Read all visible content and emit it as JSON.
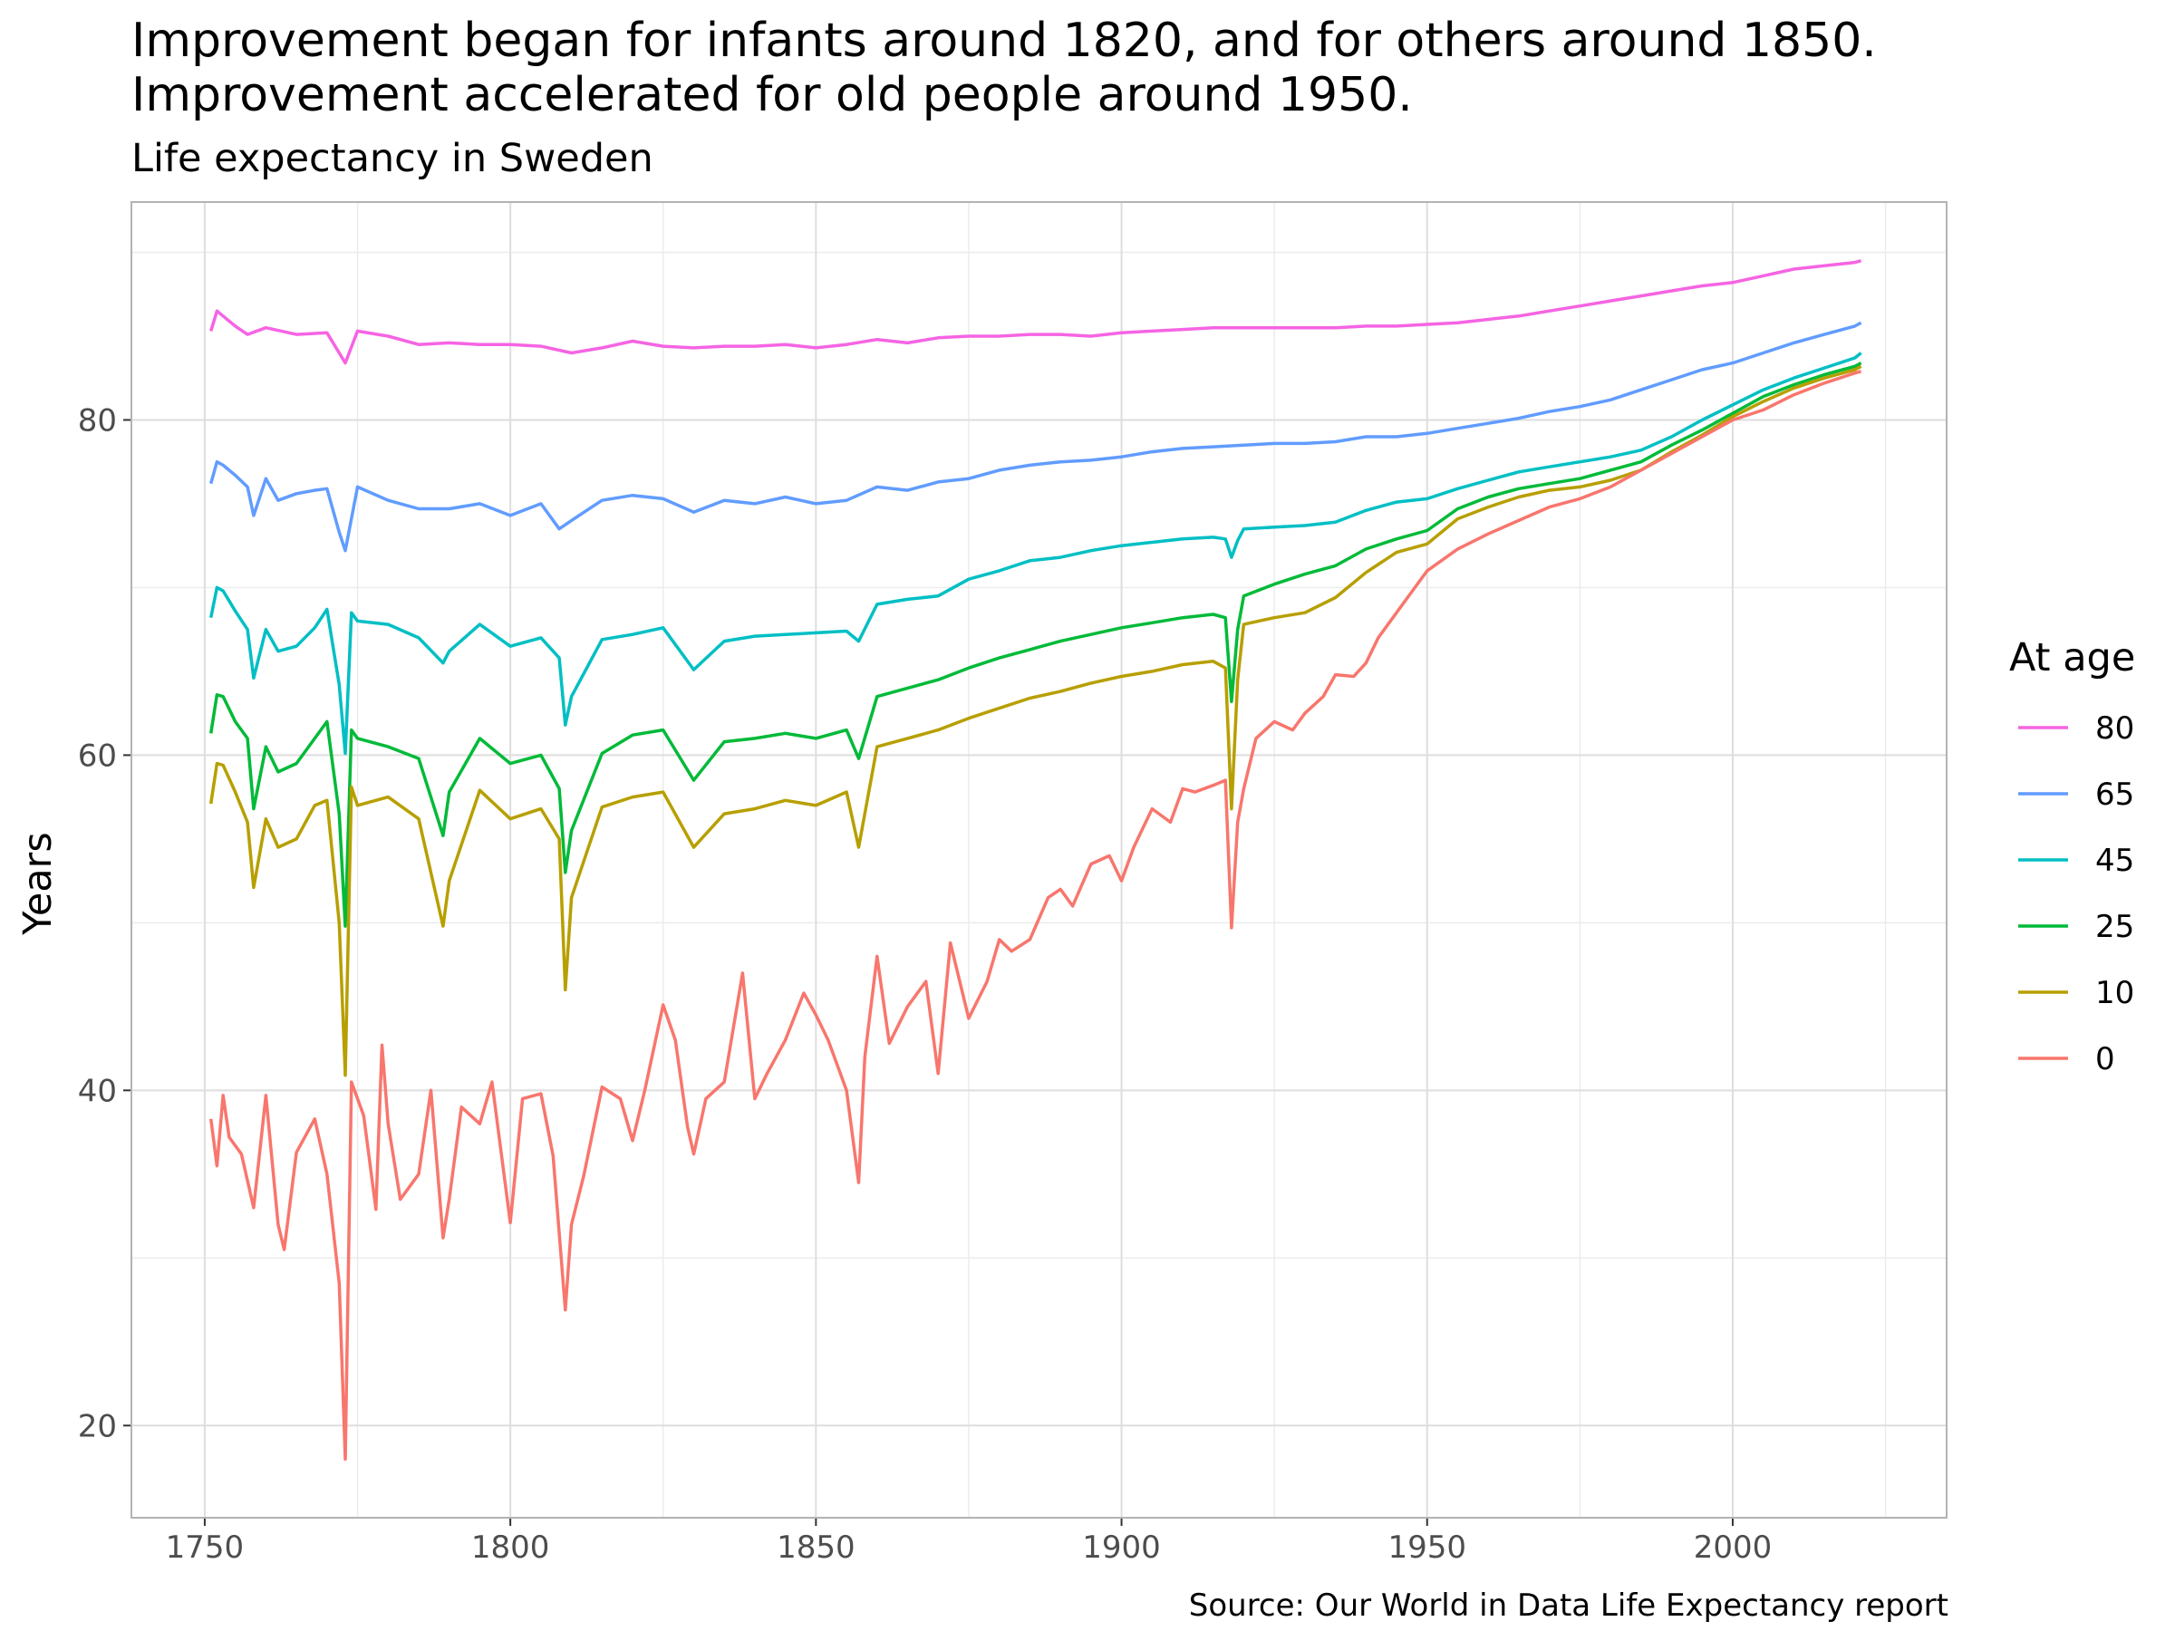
{
  "chart_data": {
    "type": "line",
    "title_lines": [
      "Improvement began for infants around 1820, and for others around 1850.",
      "Improvement accelerated for old people around 1950."
    ],
    "subtitle": "Life expectancy in Sweden",
    "xlabel": "",
    "ylabel": "Years",
    "caption": "Source: Our World in Data Life Expectancy report",
    "legend_title": "At age",
    "legend_position": "right",
    "grid": true,
    "xlim": [
      1738,
      2035
    ],
    "ylim": [
      14.5,
      93
    ],
    "x_ticks": [
      1750,
      1800,
      1850,
      1900,
      1950,
      2000
    ],
    "y_ticks": [
      20,
      40,
      60,
      80
    ],
    "colors": {
      "80": "#f564e3",
      "65": "#619cff",
      "45": "#00bfc4",
      "25": "#00ba38",
      "10": "#b79f00",
      "0": "#f8766d"
    },
    "series": [
      {
        "name": "80",
        "x": [
          1751,
          1752,
          1753,
          1755,
          1757,
          1760,
          1765,
          1770,
          1772,
          1773,
          1775,
          1780,
          1785,
          1790,
          1795,
          1800,
          1805,
          1810,
          1815,
          1820,
          1825,
          1830,
          1835,
          1840,
          1845,
          1850,
          1855,
          1860,
          1865,
          1870,
          1875,
          1880,
          1885,
          1890,
          1895,
          1900,
          1905,
          1910,
          1915,
          1920,
          1925,
          1930,
          1935,
          1940,
          1945,
          1950,
          1955,
          1960,
          1965,
          1970,
          1975,
          1980,
          1985,
          1990,
          1995,
          2000,
          2005,
          2010,
          2015,
          2020,
          2021
        ],
        "values": [
          85.3,
          86.5,
          86.2,
          85.6,
          85.1,
          85.5,
          85.1,
          85.2,
          84.0,
          83.4,
          85.3,
          85.0,
          84.5,
          84.6,
          84.5,
          84.5,
          84.4,
          84.0,
          84.3,
          84.7,
          84.4,
          84.3,
          84.4,
          84.4,
          84.5,
          84.3,
          84.5,
          84.8,
          84.6,
          84.9,
          85.0,
          85.0,
          85.1,
          85.1,
          85.0,
          85.2,
          85.3,
          85.4,
          85.5,
          85.5,
          85.5,
          85.5,
          85.5,
          85.6,
          85.6,
          85.7,
          85.8,
          86.0,
          86.2,
          86.5,
          86.8,
          87.1,
          87.4,
          87.7,
          88.0,
          88.2,
          88.6,
          89.0,
          89.2,
          89.4,
          89.5
        ]
      },
      {
        "name": "65",
        "x": [
          1751,
          1752,
          1753,
          1755,
          1757,
          1758,
          1760,
          1762,
          1765,
          1768,
          1770,
          1772,
          1773,
          1775,
          1780,
          1785,
          1790,
          1795,
          1800,
          1805,
          1808,
          1810,
          1815,
          1820,
          1825,
          1830,
          1835,
          1840,
          1845,
          1850,
          1855,
          1860,
          1865,
          1870,
          1875,
          1880,
          1885,
          1890,
          1895,
          1900,
          1905,
          1910,
          1915,
          1920,
          1925,
          1930,
          1935,
          1940,
          1945,
          1950,
          1955,
          1960,
          1965,
          1970,
          1975,
          1980,
          1985,
          1990,
          1995,
          2000,
          2005,
          2010,
          2015,
          2020,
          2021
        ],
        "values": [
          76.2,
          77.5,
          77.3,
          76.7,
          76.0,
          74.3,
          76.5,
          75.2,
          75.6,
          75.8,
          75.9,
          73.3,
          72.2,
          76.0,
          75.2,
          74.7,
          74.7,
          75.0,
          74.3,
          75.0,
          73.5,
          74.0,
          75.2,
          75.5,
          75.3,
          74.5,
          75.2,
          75.0,
          75.4,
          75.0,
          75.2,
          76.0,
          75.8,
          76.3,
          76.5,
          77.0,
          77.3,
          77.5,
          77.6,
          77.8,
          78.1,
          78.3,
          78.4,
          78.5,
          78.6,
          78.6,
          78.7,
          79.0,
          79.0,
          79.2,
          79.5,
          79.8,
          80.1,
          80.5,
          80.8,
          81.2,
          81.8,
          82.4,
          83.0,
          83.4,
          84.0,
          84.6,
          85.1,
          85.6,
          85.8
        ]
      },
      {
        "name": "45",
        "x": [
          1751,
          1752,
          1753,
          1755,
          1757,
          1758,
          1760,
          1762,
          1765,
          1768,
          1770,
          1772,
          1773,
          1774,
          1775,
          1780,
          1785,
          1789,
          1790,
          1795,
          1800,
          1805,
          1808,
          1809,
          1810,
          1815,
          1820,
          1825,
          1830,
          1835,
          1840,
          1845,
          1850,
          1855,
          1857,
          1860,
          1865,
          1870,
          1875,
          1880,
          1885,
          1890,
          1895,
          1900,
          1905,
          1910,
          1915,
          1917,
          1918,
          1919,
          1920,
          1925,
          1930,
          1935,
          1940,
          1945,
          1950,
          1955,
          1960,
          1965,
          1970,
          1975,
          1980,
          1985,
          1990,
          1995,
          2000,
          2005,
          2010,
          2015,
          2020,
          2021
        ],
        "values": [
          68.2,
          70.0,
          69.8,
          68.6,
          67.5,
          64.6,
          67.5,
          66.2,
          66.5,
          67.6,
          68.7,
          64.2,
          60.1,
          68.5,
          68.0,
          67.8,
          67.0,
          65.5,
          66.2,
          67.8,
          66.5,
          67.0,
          65.8,
          61.8,
          63.5,
          66.9,
          67.2,
          67.6,
          65.1,
          66.8,
          67.1,
          67.2,
          67.3,
          67.4,
          66.8,
          69.0,
          69.3,
          69.5,
          70.5,
          71.0,
          71.6,
          71.8,
          72.2,
          72.5,
          72.7,
          72.9,
          73.0,
          72.9,
          71.8,
          72.8,
          73.5,
          73.6,
          73.7,
          73.9,
          74.6,
          75.1,
          75.3,
          75.9,
          76.4,
          76.9,
          77.2,
          77.5,
          77.8,
          78.2,
          79.0,
          80.0,
          80.9,
          81.8,
          82.5,
          83.1,
          83.7,
          84.0
        ]
      },
      {
        "name": "25",
        "x": [
          1751,
          1752,
          1753,
          1755,
          1757,
          1758,
          1760,
          1762,
          1765,
          1768,
          1770,
          1772,
          1773,
          1774,
          1775,
          1780,
          1785,
          1789,
          1790,
          1795,
          1800,
          1805,
          1808,
          1809,
          1810,
          1815,
          1820,
          1825,
          1830,
          1835,
          1840,
          1845,
          1850,
          1855,
          1857,
          1860,
          1865,
          1870,
          1875,
          1880,
          1885,
          1890,
          1895,
          1900,
          1905,
          1910,
          1915,
          1917,
          1918,
          1919,
          1920,
          1925,
          1930,
          1935,
          1940,
          1945,
          1950,
          1955,
          1960,
          1965,
          1970,
          1975,
          1980,
          1985,
          1990,
          1995,
          2000,
          2005,
          2010,
          2015,
          2020,
          2021
        ],
        "values": [
          61.3,
          63.6,
          63.5,
          62.0,
          61.0,
          56.8,
          60.5,
          59.0,
          59.5,
          61.0,
          62.0,
          56.5,
          49.8,
          61.5,
          61.0,
          60.5,
          59.8,
          55.2,
          57.8,
          61.0,
          59.5,
          60.0,
          58.0,
          53.0,
          55.5,
          60.1,
          61.2,
          61.5,
          58.5,
          60.8,
          61.0,
          61.3,
          61.0,
          61.5,
          59.8,
          63.5,
          64.0,
          64.5,
          65.2,
          65.8,
          66.3,
          66.8,
          67.2,
          67.6,
          67.9,
          68.2,
          68.4,
          68.2,
          63.2,
          67.5,
          69.5,
          70.2,
          70.8,
          71.3,
          72.3,
          72.9,
          73.4,
          74.7,
          75.4,
          75.9,
          76.2,
          76.5,
          77.0,
          77.5,
          78.5,
          79.4,
          80.4,
          81.4,
          82.1,
          82.7,
          83.2,
          83.4
        ]
      },
      {
        "name": "10",
        "x": [
          1751,
          1752,
          1753,
          1755,
          1757,
          1758,
          1760,
          1762,
          1765,
          1768,
          1770,
          1772,
          1773,
          1774,
          1775,
          1780,
          1785,
          1789,
          1790,
          1795,
          1800,
          1805,
          1808,
          1809,
          1810,
          1815,
          1820,
          1825,
          1830,
          1835,
          1840,
          1845,
          1850,
          1855,
          1857,
          1860,
          1865,
          1870,
          1875,
          1880,
          1885,
          1890,
          1895,
          1900,
          1905,
          1910,
          1915,
          1917,
          1918,
          1919,
          1920,
          1925,
          1930,
          1935,
          1940,
          1945,
          1950,
          1955,
          1960,
          1965,
          1970,
          1975,
          1980,
          1985,
          1990,
          1995,
          2000,
          2005,
          2010,
          2015,
          2020,
          2021
        ],
        "values": [
          57.1,
          59.5,
          59.4,
          57.8,
          56.0,
          52.1,
          56.2,
          54.5,
          55.0,
          57.0,
          57.3,
          50.0,
          40.9,
          58.1,
          57.0,
          57.5,
          56.2,
          49.8,
          52.5,
          57.9,
          56.2,
          56.8,
          55.0,
          46.0,
          51.5,
          56.9,
          57.5,
          57.8,
          54.5,
          56.5,
          56.8,
          57.3,
          57.0,
          57.8,
          54.5,
          60.5,
          61.0,
          61.5,
          62.2,
          62.8,
          63.4,
          63.8,
          64.3,
          64.7,
          65.0,
          65.4,
          65.6,
          65.2,
          56.8,
          64.5,
          67.8,
          68.2,
          68.5,
          69.4,
          70.9,
          72.1,
          72.6,
          74.1,
          74.8,
          75.4,
          75.8,
          76.0,
          76.4,
          77.0,
          78.1,
          79.1,
          80.2,
          81.1,
          81.9,
          82.5,
          83.0,
          83.2
        ]
      },
      {
        "name": "0",
        "x": [
          1751,
          1752,
          1753,
          1754,
          1756,
          1758,
          1760,
          1762,
          1763,
          1765,
          1768,
          1770,
          1772,
          1773,
          1774,
          1776,
          1778,
          1779,
          1780,
          1782,
          1785,
          1787,
          1789,
          1790,
          1792,
          1795,
          1797,
          1800,
          1802,
          1805,
          1807,
          1809,
          1810,
          1812,
          1815,
          1818,
          1820,
          1822,
          1825,
          1827,
          1829,
          1830,
          1832,
          1835,
          1838,
          1840,
          1842,
          1845,
          1848,
          1850,
          1852,
          1855,
          1857,
          1858,
          1860,
          1862,
          1865,
          1868,
          1870,
          1872,
          1875,
          1878,
          1880,
          1882,
          1885,
          1888,
          1890,
          1892,
          1895,
          1898,
          1900,
          1902,
          1905,
          1908,
          1910,
          1912,
          1915,
          1917,
          1918,
          1919,
          1920,
          1922,
          1925,
          1928,
          1930,
          1933,
          1935,
          1938,
          1940,
          1942,
          1945,
          1948,
          1950,
          1955,
          1960,
          1965,
          1970,
          1975,
          1980,
          1985,
          1990,
          1995,
          2000,
          2005,
          2010,
          2015,
          2020,
          2021
        ],
        "values": [
          38.3,
          35.5,
          39.7,
          37.2,
          36.2,
          33.0,
          39.7,
          32.0,
          30.5,
          36.3,
          38.3,
          35.0,
          28.5,
          18.0,
          40.5,
          38.5,
          32.9,
          42.7,
          38.0,
          33.5,
          35.0,
          40.0,
          31.2,
          33.5,
          39.0,
          38.0,
          40.5,
          32.1,
          39.5,
          39.8,
          36.1,
          26.9,
          32.0,
          34.9,
          40.2,
          39.5,
          37.0,
          40.0,
          45.1,
          43.0,
          37.8,
          36.2,
          39.5,
          40.5,
          47.0,
          39.5,
          41.0,
          43.0,
          45.8,
          44.5,
          43.0,
          40.0,
          34.5,
          42.0,
          48.0,
          42.8,
          45.0,
          46.5,
          41.0,
          48.8,
          44.3,
          46.5,
          49.0,
          48.3,
          49.0,
          51.5,
          52.0,
          51.0,
          53.5,
          54.0,
          52.5,
          54.5,
          56.8,
          56.0,
          58.0,
          57.8,
          58.2,
          58.5,
          49.7,
          56.0,
          58.0,
          61.0,
          62.0,
          61.5,
          62.5,
          63.5,
          64.8,
          64.7,
          65.5,
          67.0,
          68.5,
          70.0,
          71.0,
          72.3,
          73.2,
          74.0,
          74.8,
          75.3,
          76.0,
          77.0,
          78.0,
          79.0,
          80.0,
          80.6,
          81.5,
          82.2,
          82.8,
          82.9
        ]
      }
    ]
  }
}
